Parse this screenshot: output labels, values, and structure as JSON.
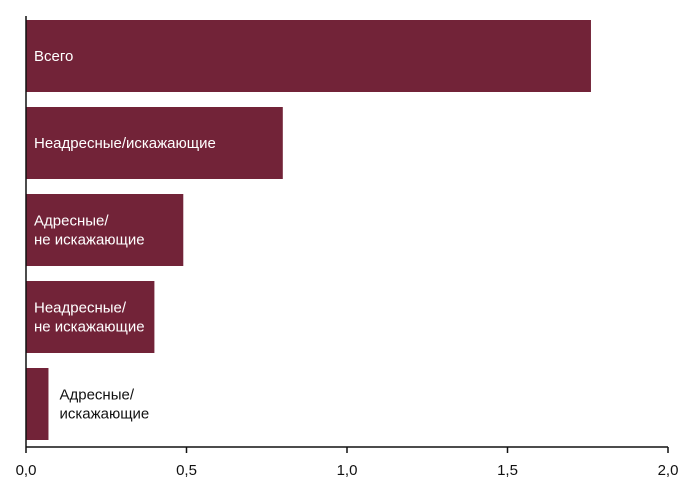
{
  "chart_data": {
    "type": "bar",
    "orientation": "horizontal",
    "bar_color": "#722338",
    "inside_label_color": "#ffffff",
    "outside_label_color": "#111111",
    "axis_color": "#111111",
    "xlim": [
      0,
      2
    ],
    "x_ticks": [
      {
        "value": 0,
        "label": "0,0"
      },
      {
        "value": 0.5,
        "label": "0,5"
      },
      {
        "value": 1,
        "label": "1,0"
      },
      {
        "value": 1.5,
        "label": "1,5"
      },
      {
        "value": 2,
        "label": "2,0"
      }
    ],
    "categories": [
      {
        "label_lines": [
          "Всего"
        ],
        "value": 1.76,
        "label_position": "inside"
      },
      {
        "label_lines": [
          "Неадресные/искажающие"
        ],
        "value": 0.8,
        "label_position": "inside"
      },
      {
        "label_lines": [
          "Адресные/",
          "не искажающие"
        ],
        "value": 0.49,
        "label_position": "inside"
      },
      {
        "label_lines": [
          "Неадресные/",
          "не искажающие"
        ],
        "value": 0.4,
        "label_position": "inside"
      },
      {
        "label_lines": [
          "Адресные/",
          "искажающие"
        ],
        "value": 0.07,
        "label_position": "outside"
      }
    ],
    "grid": false,
    "legend": "none"
  }
}
